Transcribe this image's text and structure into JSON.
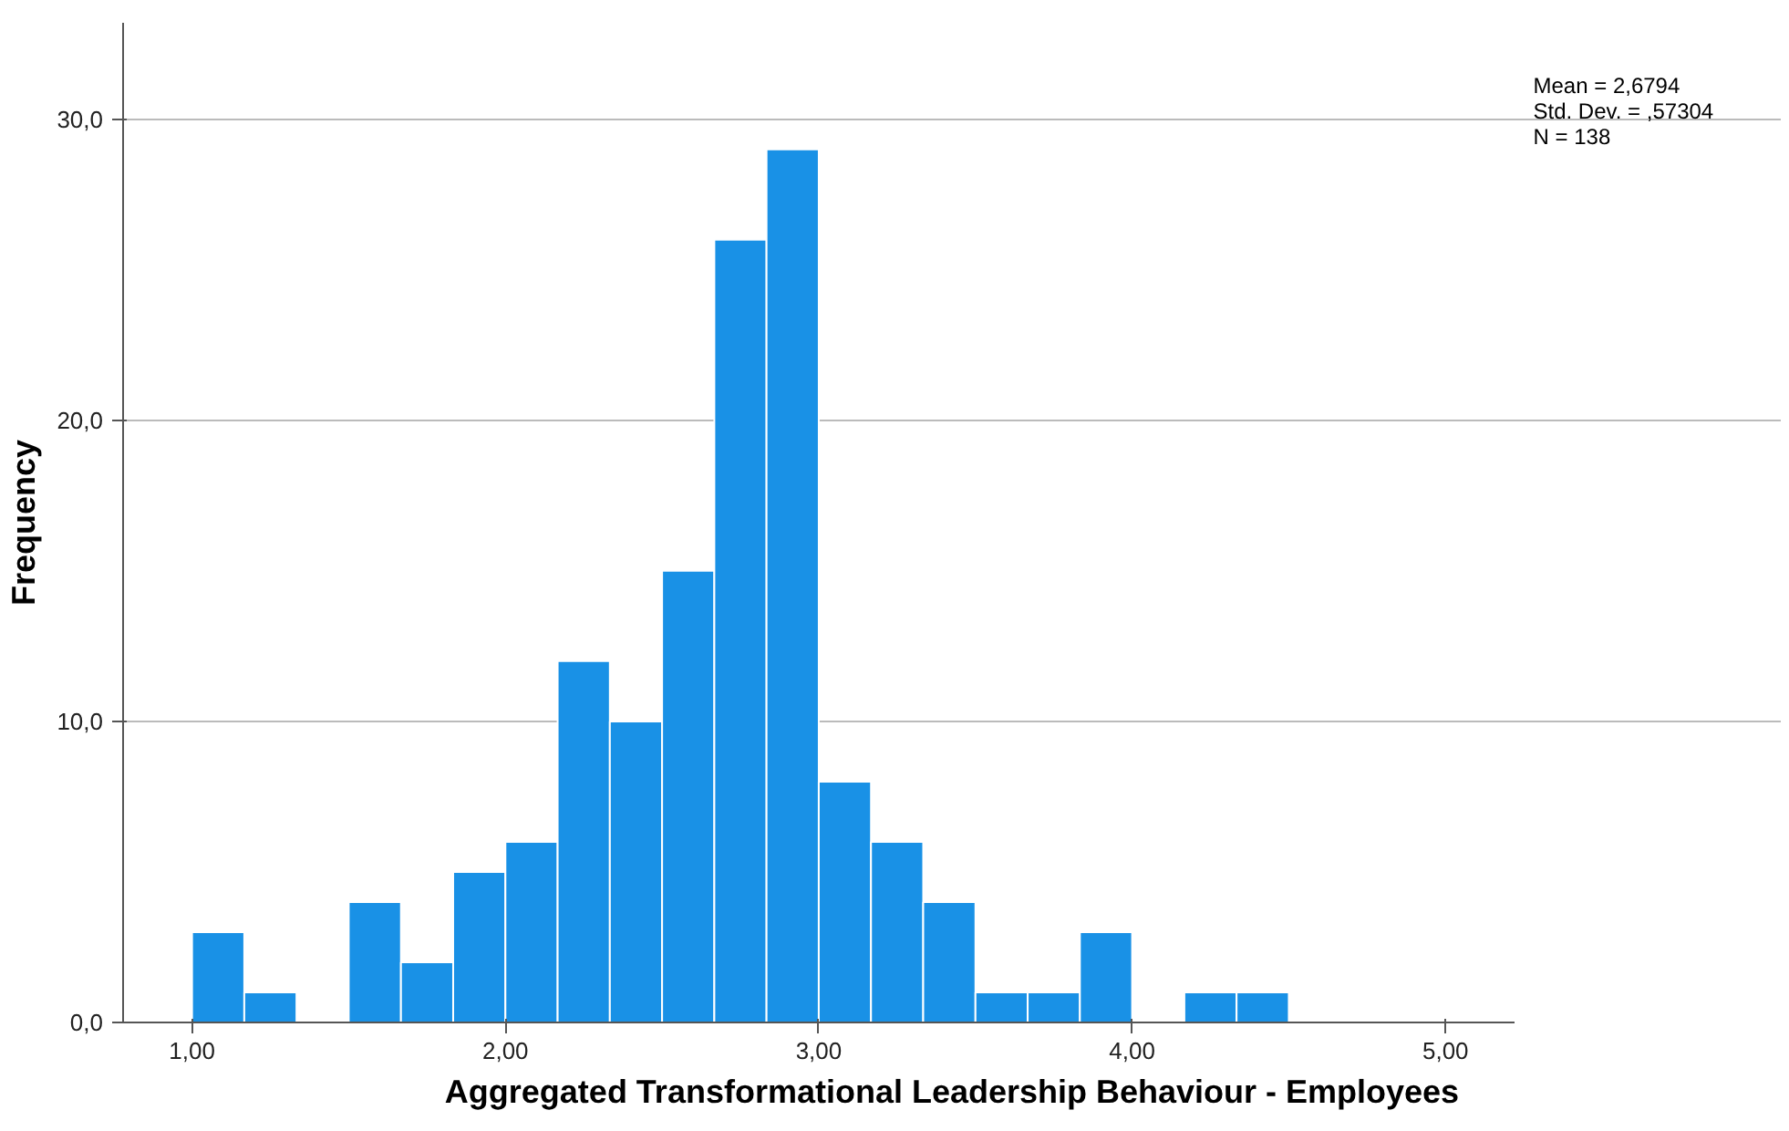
{
  "chart_data": {
    "type": "histogram",
    "xlabel": "Aggregated Transformational Leadership Behaviour - Employees",
    "ylabel": "Frequency",
    "bins": [
      1.0,
      1.1667,
      1.3333,
      1.5,
      1.6667,
      1.8333,
      2.0,
      2.1667,
      2.3333,
      2.5,
      2.6667,
      2.8333,
      3.0,
      3.1667,
      3.3333,
      3.5,
      3.6667,
      3.8333,
      4.0,
      4.1667,
      4.3333,
      4.5
    ],
    "values": [
      3,
      1,
      0,
      4,
      2,
      5,
      6,
      12,
      10,
      15,
      26,
      29,
      8,
      6,
      4,
      1,
      1,
      3,
      0,
      1,
      1
    ],
    "color": "#1991e6",
    "xlim": [
      0.78,
      5.22
    ],
    "ylim": [
      0,
      33.2
    ],
    "xticks": [
      {
        "value": 1,
        "label": "1,00"
      },
      {
        "value": 2,
        "label": "2,00"
      },
      {
        "value": 3,
        "label": "3,00"
      },
      {
        "value": 4,
        "label": "4,00"
      },
      {
        "value": 5,
        "label": "5,00"
      }
    ],
    "yticks": [
      {
        "value": 0,
        "label": "0,0"
      },
      {
        "value": 10,
        "label": "10,0"
      },
      {
        "value": 20,
        "label": "20,0"
      },
      {
        "value": 30,
        "label": "30,0"
      }
    ],
    "grid": "y",
    "annotations": [
      "Mean = 2,6794",
      "Std. Dev. = ,57304",
      "N = 138"
    ]
  }
}
